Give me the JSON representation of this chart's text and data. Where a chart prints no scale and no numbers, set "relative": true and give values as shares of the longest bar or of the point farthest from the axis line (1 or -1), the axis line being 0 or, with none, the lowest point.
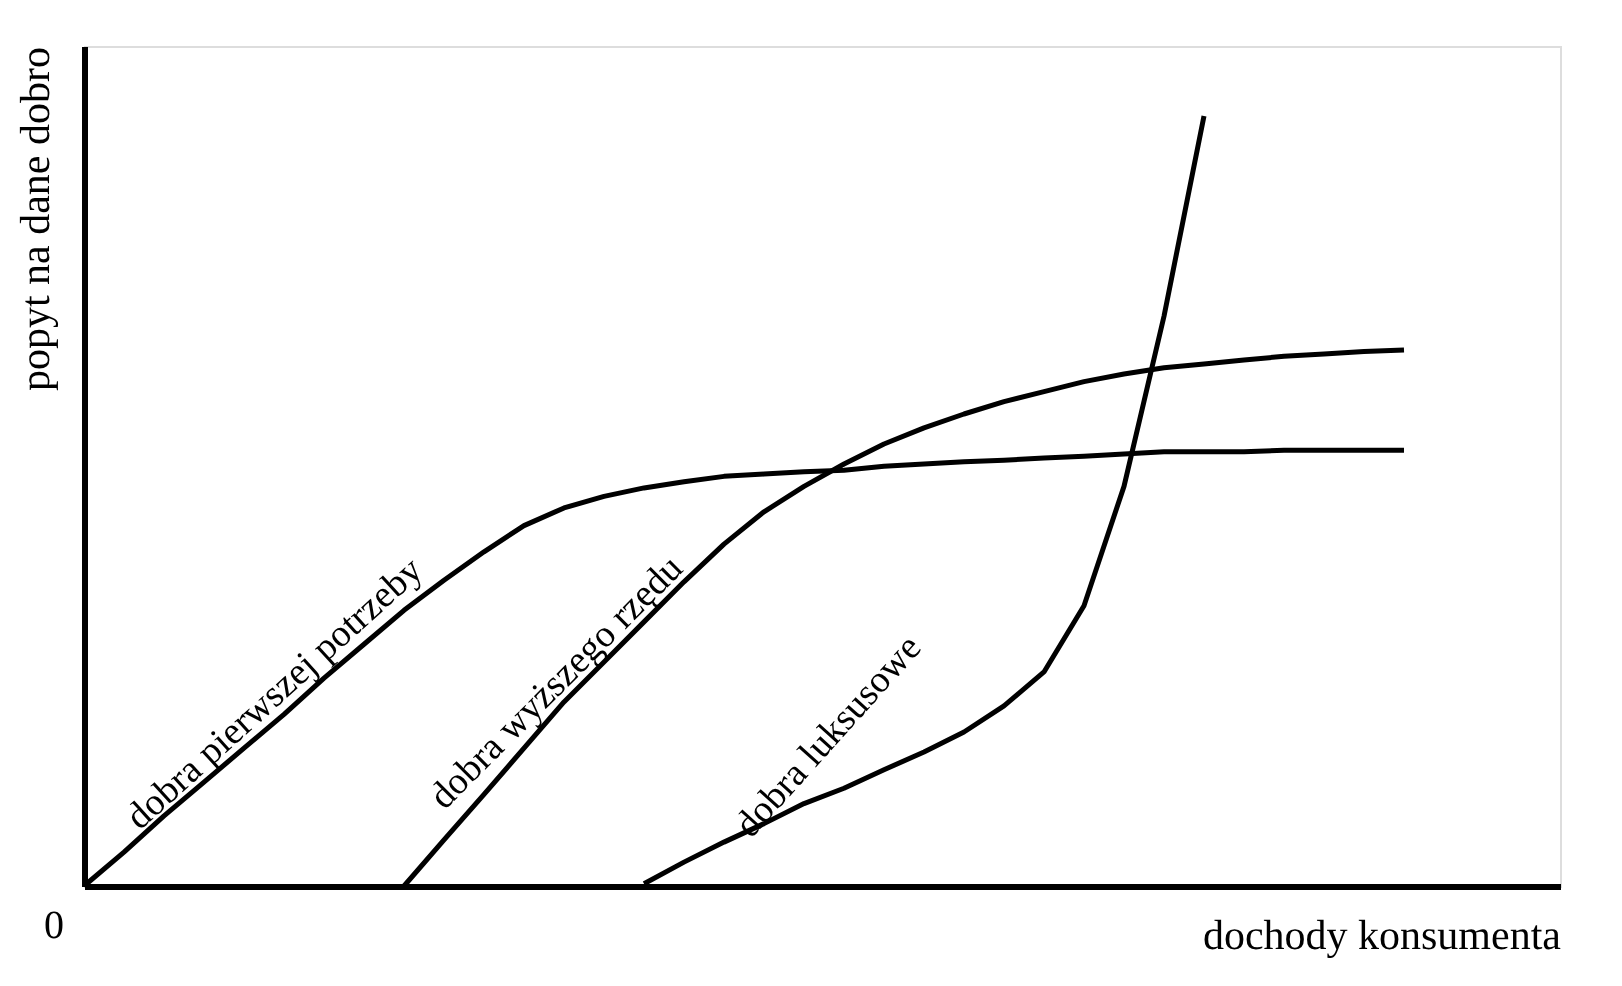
{
  "chart_data": {
    "type": "line",
    "relative": true,
    "xlabel": "dochody konsumenta",
    "ylabel": "popyt na dane dobro",
    "grid": false,
    "marker": "none",
    "line_style": "solid",
    "annotations": [
      "0"
    ],
    "categories": [
      null,
      null,
      null,
      null,
      null,
      null,
      null,
      null,
      null,
      null,
      null,
      null,
      null,
      null,
      null,
      null,
      null,
      null,
      null,
      null,
      null,
      null,
      null,
      null,
      null,
      null,
      null,
      null,
      null,
      null,
      null,
      null,
      null,
      null,
      null,
      null
    ],
    "series": [
      {
        "name": "dobra pierwszej potrzeby",
        "color": "#000000",
        "values": [
          0,
          0.044,
          0.091,
          0.135,
          0.179,
          0.223,
          0.27,
          0.314,
          0.358,
          0.397,
          0.434,
          0.468,
          0.491,
          0.506,
          0.517,
          0.525,
          0.532,
          0.535,
          0.538,
          0.54,
          0.545,
          0.548,
          0.551,
          0.553,
          0.556,
          0.558,
          0.561,
          0.564,
          0.564,
          0.564,
          0.566,
          0.566,
          0.566,
          0.566,
          null,
          null
        ]
      },
      {
        "name": "dobra wyższego rzędu",
        "color": "#000000",
        "values": [
          null,
          null,
          null,
          null,
          null,
          null,
          null,
          null,
          0,
          0.06,
          0.119,
          0.179,
          0.239,
          0.291,
          0.343,
          0.395,
          0.444,
          0.486,
          0.519,
          0.548,
          0.574,
          0.595,
          0.613,
          0.629,
          0.642,
          0.655,
          0.665,
          0.673,
          0.678,
          0.683,
          0.688,
          0.691,
          0.694,
          0.696,
          null,
          null
        ]
      },
      {
        "name": "dobra luksusowe",
        "color": "#000000",
        "values": [
          null,
          null,
          null,
          null,
          null,
          null,
          null,
          null,
          null,
          null,
          null,
          null,
          null,
          null,
          0.003,
          0.031,
          0.057,
          0.081,
          0.107,
          0.127,
          0.151,
          0.174,
          0.2,
          0.234,
          0.278,
          0.364,
          0.519,
          0.74,
          1,
          null,
          null,
          null,
          null,
          null,
          null,
          null
        ]
      }
    ]
  }
}
